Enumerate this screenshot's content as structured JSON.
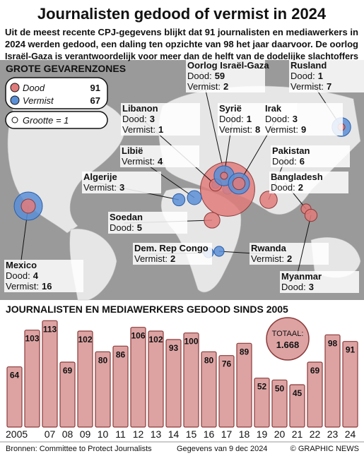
{
  "header": {
    "title": "Journalisten gedood of vermist in 2024",
    "subtitle": [
      "Uit de meest recente CPJ-gegevens blijkt dat 91 journalisten en mediawerkers in",
      "2024 werden gedood, een daling ten opzichte van 98 het jaar daarvoor. De oorlog",
      "Israël-Gaza is verantwoordelijk voor meer dan de helft van de dodelijke slachtoffers"
    ]
  },
  "map": {
    "heading": "GROTE GEVARENZONES",
    "legend": {
      "dood": {
        "label": "Dood",
        "value": 91,
        "color": "#e07b7b"
      },
      "vermist": {
        "label": "Vermist",
        "value": 67,
        "color": "#5b8fd6"
      },
      "size": "Grootte = 1"
    },
    "dood_label": "Dood:",
    "vermist_label": "Vermist:",
    "regions": [
      {
        "name": "Oorlog Israël-Gaza",
        "dood": 59,
        "vermist": 2
      },
      {
        "name": "Rusland",
        "dood": 1,
        "vermist": 7
      },
      {
        "name": "Libanon",
        "dood": 3,
        "vermist": 1
      },
      {
        "name": "Syrië",
        "dood": 1,
        "vermist": 8
      },
      {
        "name": "Irak",
        "dood": 3,
        "vermist": 9
      },
      {
        "name": "Libië",
        "vermist": 4
      },
      {
        "name": "Algerije",
        "vermist": 3
      },
      {
        "name": "Pakistan",
        "dood": 6
      },
      {
        "name": "Bangladesh",
        "dood": 2
      },
      {
        "name": "Soedan",
        "dood": 5
      },
      {
        "name": "Dem. Rep Congo",
        "vermist": 2
      },
      {
        "name": "Rwanda",
        "vermist": 2
      },
      {
        "name": "Myanmar",
        "dood": 3
      },
      {
        "name": "Mexico",
        "dood": 4,
        "vermist": 16
      }
    ]
  },
  "chart_data": {
    "type": "bar",
    "title": "JOURNALISTEN EN MEDIAWERKERS GEDOOD SINDS 2005",
    "categories": [
      "2005",
      null,
      "07",
      "08",
      "09",
      "10",
      "11",
      "12",
      "13",
      "14",
      "15",
      "16",
      "17",
      "18",
      "19",
      "20",
      "21",
      "22",
      "23",
      "24"
    ],
    "values": [
      64,
      103,
      113,
      69,
      102,
      80,
      86,
      106,
      102,
      93,
      100,
      80,
      76,
      89,
      52,
      50,
      45,
      69,
      98,
      91
    ],
    "color": "#dda3a3",
    "ylim": [
      0,
      120
    ],
    "total_title": "TOTAAL:",
    "total": {
      "value": 1668,
      "label": "1.668"
    }
  },
  "footer": {
    "source": "Bronnen: Committee to Protect Journalists",
    "date": "Gegevens van 9 dec 2024",
    "credit": "© GRAPHIC NEWS"
  }
}
